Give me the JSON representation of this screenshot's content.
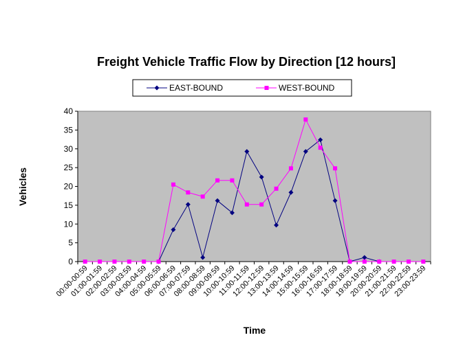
{
  "chart_data": {
    "type": "line",
    "title": "Freight Vehicle Traffic Flow by Direction [12 hours]",
    "xlabel": "Time",
    "ylabel": "Vehicles",
    "ylim": [
      0,
      40
    ],
    "yticks": [
      "0",
      "5",
      "10",
      "15",
      "20",
      "25",
      "30",
      "35",
      "40"
    ],
    "grid": false,
    "legend_position": "top",
    "plot_background": "#c0c0c0",
    "categories": [
      "00:00-00:59",
      "01:00-01:59",
      "02:00-02:59",
      "03:00-03:59",
      "04:00-04:59",
      "05:00-05:59",
      "06:00-06:59",
      "07:00-07:59",
      "08:00-08:59",
      "09:00-09:59",
      "10:00-10:59",
      "11:00-11:59",
      "12:00-12:59",
      "13:00-13:59",
      "14:00-14:59",
      "15:00-15:59",
      "16:00-16:59",
      "17:00-17:59",
      "18:00-18:59",
      "19:00-19:59",
      "20:00-20:59",
      "21:00-21:59",
      "22:00-22:59",
      "23:00-23:59"
    ],
    "series": [
      {
        "name": "EAST-BOUND",
        "color": "#000080",
        "marker": "diamond",
        "values": [
          null,
          null,
          null,
          null,
          null,
          0,
          8.5,
          15.2,
          1.1,
          16.2,
          13,
          29.3,
          22.5,
          9.7,
          18.4,
          29.3,
          32.4,
          16.2,
          0,
          1.1,
          0,
          null,
          null,
          null
        ]
      },
      {
        "name": "WEST-BOUND",
        "color": "#ff00ff",
        "marker": "square",
        "values": [
          0,
          0,
          0,
          0,
          0,
          0,
          20.5,
          18.4,
          17.3,
          21.6,
          21.6,
          15.2,
          15.2,
          19.4,
          24.8,
          37.8,
          30.3,
          24.8,
          0,
          0,
          0,
          0,
          0,
          0
        ]
      }
    ]
  }
}
